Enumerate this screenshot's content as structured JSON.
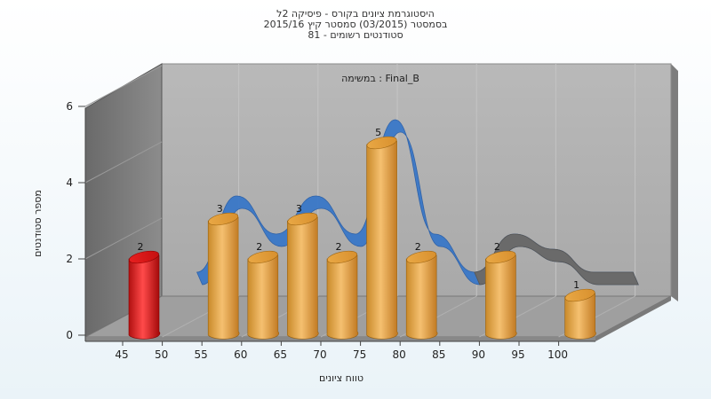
{
  "chart_data": {
    "type": "bar",
    "title_lines": [
      "היסטוגרמת ציונים בקורס - פיסיקה 2ל",
      "בסמסטר  (03/2015)  סמסטר קיץ 2015/16",
      "סטודנטים רשומים - 81"
    ],
    "subtitle": "במשימה : Final_B",
    "xlabel": "טווח ציונים",
    "ylabel": "מספר סטודנטים",
    "x_ticks": [
      "45",
      "50",
      "55",
      "60",
      "65",
      "70",
      "75",
      "80",
      "85",
      "90",
      "95",
      "100"
    ],
    "y_ticks": [
      "0",
      "2",
      "4",
      "6"
    ],
    "ylim": [
      0,
      6
    ],
    "bars": [
      {
        "x": 45,
        "value": 2,
        "label": "2",
        "color": "red"
      },
      {
        "x": 55,
        "value": 3,
        "label": "3",
        "color": "orange"
      },
      {
        "x": 60,
        "value": 2,
        "label": "2",
        "color": "orange"
      },
      {
        "x": 65,
        "value": 3,
        "label": "3",
        "color": "orange"
      },
      {
        "x": 70,
        "value": 2,
        "label": "2",
        "color": "orange"
      },
      {
        "x": 75,
        "value": 5,
        "label": "5",
        "color": "orange"
      },
      {
        "x": 80,
        "value": 2,
        "label": "2",
        "color": "orange"
      },
      {
        "x": 90,
        "value": 2,
        "label": "2",
        "color": "orange"
      },
      {
        "x": 100,
        "value": 1,
        "label": "1",
        "color": "orange"
      }
    ],
    "trend_ribbon_colors": [
      "#3a78c8",
      "#6a6a6a"
    ],
    "grid": true,
    "legend": "none"
  }
}
